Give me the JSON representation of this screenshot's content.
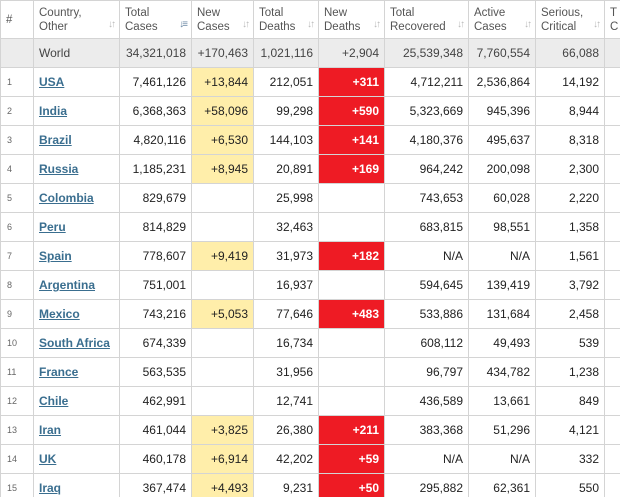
{
  "header": {
    "num": "#",
    "country": [
      "Country,",
      "Other"
    ],
    "total_cases": [
      "Total",
      "Cases"
    ],
    "new_cases": [
      "New",
      "Cases"
    ],
    "total_deaths": [
      "Total",
      "Deaths"
    ],
    "new_deaths": [
      "New",
      "Deaths"
    ],
    "total_recovered": [
      "Total",
      "Recovered"
    ],
    "active_cases": [
      "Active",
      "Cases"
    ],
    "serious": [
      "Serious,",
      "Critical"
    ],
    "extra": [
      "T",
      "C"
    ]
  },
  "world": {
    "country": "World",
    "total_cases": "34,321,018",
    "new_cases": "+170,463",
    "total_deaths": "1,021,116",
    "new_deaths": "+2,904",
    "recovered": "25,539,348",
    "active": "7,760,554",
    "serious": "66,088"
  },
  "rows": [
    {
      "num": "1",
      "country": "USA",
      "total_cases": "7,461,126",
      "new_cases": "+13,844",
      "total_deaths": "212,051",
      "new_deaths": "+311",
      "recovered": "4,712,211",
      "active": "2,536,864",
      "serious": "14,192"
    },
    {
      "num": "2",
      "country": "India",
      "total_cases": "6,368,363",
      "new_cases": "+58,096",
      "total_deaths": "99,298",
      "new_deaths": "+590",
      "recovered": "5,323,669",
      "active": "945,396",
      "serious": "8,944"
    },
    {
      "num": "3",
      "country": "Brazil",
      "total_cases": "4,820,116",
      "new_cases": "+6,530",
      "total_deaths": "144,103",
      "new_deaths": "+141",
      "recovered": "4,180,376",
      "active": "495,637",
      "serious": "8,318"
    },
    {
      "num": "4",
      "country": "Russia",
      "total_cases": "1,185,231",
      "new_cases": "+8,945",
      "total_deaths": "20,891",
      "new_deaths": "+169",
      "recovered": "964,242",
      "active": "200,098",
      "serious": "2,300"
    },
    {
      "num": "5",
      "country": "Colombia",
      "total_cases": "829,679",
      "new_cases": "",
      "total_deaths": "25,998",
      "new_deaths": "",
      "recovered": "743,653",
      "active": "60,028",
      "serious": "2,220"
    },
    {
      "num": "6",
      "country": "Peru",
      "total_cases": "814,829",
      "new_cases": "",
      "total_deaths": "32,463",
      "new_deaths": "",
      "recovered": "683,815",
      "active": "98,551",
      "serious": "1,358"
    },
    {
      "num": "7",
      "country": "Spain",
      "total_cases": "778,607",
      "new_cases": "+9,419",
      "total_deaths": "31,973",
      "new_deaths": "+182",
      "recovered": "N/A",
      "active": "N/A",
      "serious": "1,561"
    },
    {
      "num": "8",
      "country": "Argentina",
      "total_cases": "751,001",
      "new_cases": "",
      "total_deaths": "16,937",
      "new_deaths": "",
      "recovered": "594,645",
      "active": "139,419",
      "serious": "3,792"
    },
    {
      "num": "9",
      "country": "Mexico",
      "total_cases": "743,216",
      "new_cases": "+5,053",
      "total_deaths": "77,646",
      "new_deaths": "+483",
      "recovered": "533,886",
      "active": "131,684",
      "serious": "2,458"
    },
    {
      "num": "10",
      "country": "South Africa",
      "total_cases": "674,339",
      "new_cases": "",
      "total_deaths": "16,734",
      "new_deaths": "",
      "recovered": "608,112",
      "active": "49,493",
      "serious": "539"
    },
    {
      "num": "11",
      "country": "France",
      "total_cases": "563,535",
      "new_cases": "",
      "total_deaths": "31,956",
      "new_deaths": "",
      "recovered": "96,797",
      "active": "434,782",
      "serious": "1,238"
    },
    {
      "num": "12",
      "country": "Chile",
      "total_cases": "462,991",
      "new_cases": "",
      "total_deaths": "12,741",
      "new_deaths": "",
      "recovered": "436,589",
      "active": "13,661",
      "serious": "849"
    },
    {
      "num": "13",
      "country": "Iran",
      "total_cases": "461,044",
      "new_cases": "+3,825",
      "total_deaths": "26,380",
      "new_deaths": "+211",
      "recovered": "383,368",
      "active": "51,296",
      "serious": "4,121"
    },
    {
      "num": "14",
      "country": "UK",
      "total_cases": "460,178",
      "new_cases": "+6,914",
      "total_deaths": "42,202",
      "new_deaths": "+59",
      "recovered": "N/A",
      "active": "N/A",
      "serious": "332"
    },
    {
      "num": "15",
      "country": "Iraq",
      "total_cases": "367,474",
      "new_cases": "+4,493",
      "total_deaths": "9,231",
      "new_deaths": "+50",
      "recovered": "295,882",
      "active": "62,361",
      "serious": "550"
    }
  ],
  "colors": {
    "new_cases_bg": "#ffeeaa",
    "new_deaths_bg": "#ee1b24",
    "world_row_bg": "#ececec",
    "link": "#3a6e8f"
  },
  "icons": {
    "sort": "sort-arrows-icon"
  }
}
